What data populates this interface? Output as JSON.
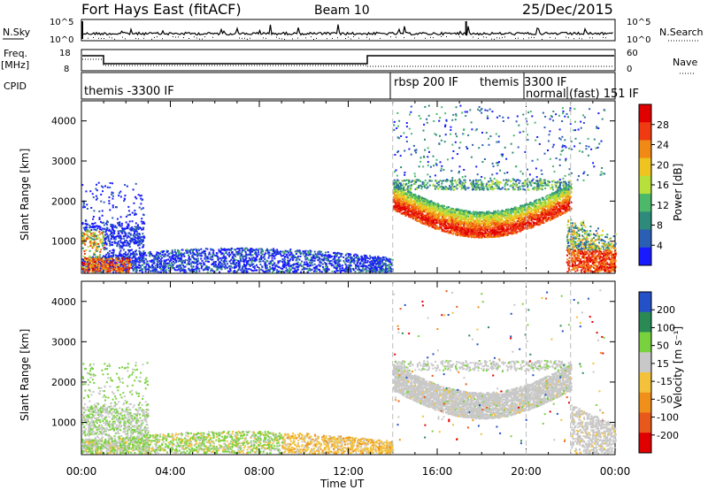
{
  "header": {
    "station": "Fort Hays East (fitACF)",
    "beam": "Beam 10",
    "date": "25/Dec/2015"
  },
  "left_labels": {
    "nsky": "N.Sky",
    "freq": "Freq.",
    "freq_unit": "[MHz]",
    "cpid": "CPID"
  },
  "right_labels": {
    "nsearch": "N.Search",
    "nave": "Nave"
  },
  "ticks": {
    "noise_left": [
      "10^5",
      "10^0"
    ],
    "noise_right": [
      "10^5",
      "10^0"
    ],
    "freq_left": [
      "18",
      "8"
    ],
    "freq_right": [
      "60",
      "0"
    ]
  },
  "cpid_segments": [
    {
      "label": "themis -3300 IF"
    },
    {
      "label": "rbsp 200 IF"
    },
    {
      "label": "themis"
    },
    {
      "label": "3300 IF"
    },
    {
      "label": "normal"
    },
    {
      "label": "(fast) 151 IF"
    }
  ],
  "colors": {
    "power_scale": [
      "#1a1aff",
      "#2b5fb3",
      "#2e8a7a",
      "#4bb86a",
      "#b8e03a",
      "#f0c41e",
      "#f08a14",
      "#ef3a12",
      "#e00000"
    ],
    "velocity_scale": [
      "#2450c8",
      "#2a8a55",
      "#79d13e",
      "#c8c8c8",
      "#f3c23a",
      "#f0901a",
      "#e8581a",
      "#e00000"
    ]
  },
  "chart_data": [
    {
      "type": "heatmap",
      "panel": "power",
      "xlabel": "",
      "ylabel": "Slant Range [km]",
      "yticks": [
        "1000",
        "2000",
        "3000",
        "4000"
      ],
      "ylim": [
        200,
        4500
      ],
      "colorbar_label": "Power [dB]",
      "colorbar_ticks": [
        "4",
        "8",
        "12",
        "16",
        "20",
        "24",
        "28"
      ],
      "x": [
        "00:00",
        "04:00",
        "08:00",
        "12:00",
        "16:00",
        "20:00",
        "00:00"
      ]
    },
    {
      "type": "heatmap",
      "panel": "velocity",
      "xlabel": "Time UT",
      "ylabel": "Slant Range [km]",
      "yticks": [
        "1000",
        "2000",
        "3000",
        "4000"
      ],
      "ylim": [
        200,
        4500
      ],
      "colorbar_label": "Velocity [m s⁻¹]",
      "colorbar_ticks": [
        "200",
        "100",
        "50",
        "15",
        "-15",
        "-50",
        "-100",
        "-200"
      ],
      "x": [
        "00:00",
        "04:00",
        "08:00",
        "12:00",
        "16:00",
        "20:00",
        "00:00"
      ]
    }
  ]
}
